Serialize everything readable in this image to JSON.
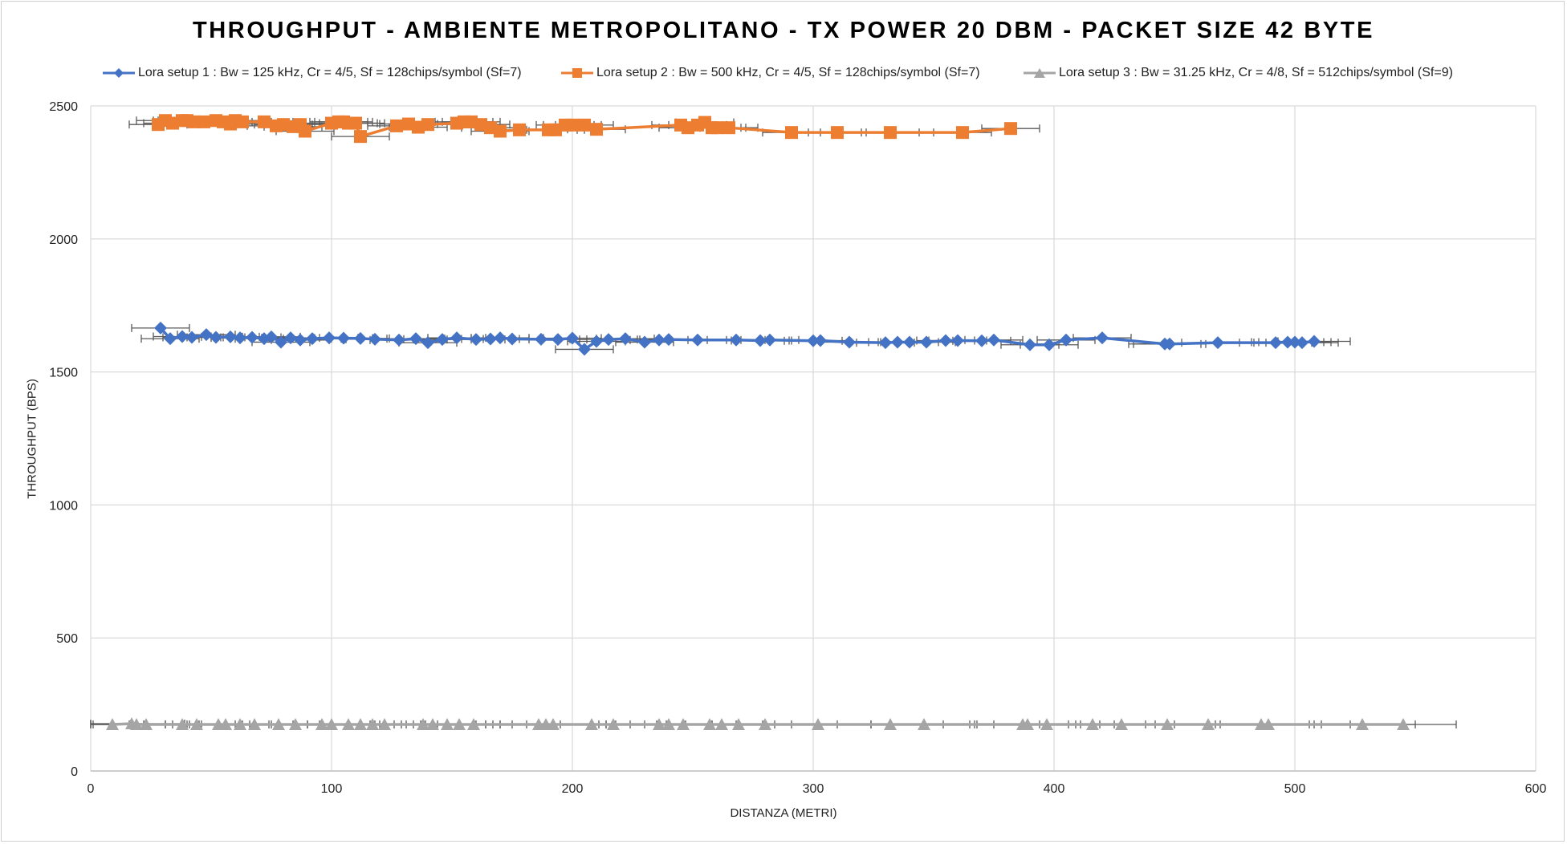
{
  "chart_data": {
    "type": "line",
    "title": "THROUGHPUT - AMBIENTE METROPOLITANO - TX POWER 20 DBM - PACKET SIZE 42 BYTE",
    "xlabel": "DISTANZA (METRI)",
    "ylabel": "THROUGHPUT (BPS)",
    "xlim": [
      0,
      600
    ],
    "ylim": [
      0,
      2500
    ],
    "x_ticks": [
      "0",
      "100",
      "200",
      "300",
      "400",
      "500",
      "600"
    ],
    "y_ticks": [
      "0",
      "500",
      "1000",
      "1500",
      "2000",
      "2500"
    ],
    "grid": true,
    "legend_position": "top",
    "error_bars": "horizontal",
    "series": [
      {
        "name": "Lora setup 1 : Bw = 125 kHz, Cr = 4/5, Sf = 128chips/symbol (Sf=7)",
        "color": "#4472C4",
        "marker": "diamond",
        "x": [
          29,
          33,
          38,
          42,
          48,
          52,
          58,
          62,
          67,
          72,
          75,
          79,
          83,
          87,
          92,
          99,
          105,
          112,
          118,
          128,
          135,
          140,
          146,
          152,
          160,
          166,
          170,
          175,
          187,
          194,
          200,
          205,
          210,
          215,
          222,
          230,
          236,
          240,
          252,
          268,
          278,
          282,
          300,
          303,
          315,
          330,
          335,
          340,
          347,
          355,
          360,
          370,
          375,
          390,
          398,
          405,
          420,
          446,
          448,
          468,
          492,
          497,
          500,
          503,
          508
        ],
        "y": [
          1665,
          1625,
          1633,
          1630,
          1640,
          1630,
          1632,
          1628,
          1630,
          1625,
          1632,
          1612,
          1628,
          1620,
          1625,
          1628,
          1627,
          1626,
          1623,
          1620,
          1625,
          1610,
          1622,
          1628,
          1622,
          1624,
          1628,
          1624,
          1623,
          1622,
          1627,
          1585,
          1615,
          1622,
          1625,
          1612,
          1620,
          1622,
          1620,
          1620,
          1618,
          1620,
          1617,
          1618,
          1612,
          1610,
          1612,
          1612,
          1612,
          1618,
          1618,
          1617,
          1620,
          1602,
          1602,
          1620,
          1628,
          1605,
          1605,
          1610,
          1610,
          1612,
          1612,
          1610,
          1615
        ],
        "x_error": [
          12,
          12,
          12,
          12,
          12,
          12,
          12,
          12,
          12,
          12,
          12,
          12,
          12,
          12,
          12,
          12,
          12,
          12,
          12,
          12,
          12,
          12,
          12,
          12,
          12,
          12,
          12,
          12,
          12,
          12,
          12,
          12,
          12,
          12,
          12,
          12,
          12,
          12,
          12,
          12,
          12,
          12,
          12,
          12,
          12,
          12,
          12,
          12,
          12,
          12,
          12,
          12,
          12,
          12,
          12,
          12,
          12,
          15,
          15,
          15,
          15,
          15,
          15,
          15,
          15
        ]
      },
      {
        "name": "Lora setup 2 : Bw = 500 kHz, Cr = 4/5, Sf = 128chips/symbol (Sf=7)",
        "color": "#ED7D31",
        "marker": "square",
        "x": [
          28,
          31,
          34,
          38,
          40,
          43,
          47,
          52,
          55,
          58,
          60,
          63,
          72,
          77,
          80,
          84,
          87,
          89,
          100,
          103,
          105,
          107,
          110,
          112,
          127,
          132,
          136,
          140,
          152,
          155,
          158,
          162,
          166,
          170,
          178,
          190,
          193,
          197,
          200,
          205,
          210,
          245,
          248,
          252,
          255,
          258,
          260,
          265,
          291,
          310,
          332,
          362,
          382
        ],
        "y": [
          2430,
          2445,
          2435,
          2445,
          2445,
          2440,
          2440,
          2445,
          2440,
          2432,
          2445,
          2440,
          2440,
          2425,
          2430,
          2422,
          2430,
          2405,
          2435,
          2440,
          2440,
          2435,
          2435,
          2385,
          2425,
          2432,
          2420,
          2430,
          2435,
          2440,
          2440,
          2430,
          2418,
          2405,
          2410,
          2410,
          2410,
          2428,
          2428,
          2428,
          2412,
          2428,
          2418,
          2428,
          2438,
          2418,
          2418,
          2418,
          2400,
          2400,
          2400,
          2400,
          2415
        ],
        "x_error": [
          12,
          12,
          12,
          12,
          12,
          12,
          12,
          12,
          12,
          12,
          12,
          12,
          12,
          12,
          12,
          12,
          12,
          12,
          12,
          12,
          12,
          12,
          12,
          12,
          12,
          12,
          12,
          12,
          12,
          12,
          12,
          12,
          12,
          12,
          12,
          12,
          12,
          12,
          12,
          12,
          12,
          12,
          12,
          12,
          12,
          12,
          12,
          12,
          12,
          12,
          12,
          12,
          12
        ]
      },
      {
        "name": "Lora setup 3 : Bw = 31.25 kHz, Cr = 4/8, Sf = 512chips/symbol (Sf=9)",
        "color": "#A5A5A5",
        "marker": "triangle",
        "x": [
          9,
          17,
          19,
          23,
          38,
          44,
          53,
          56,
          62,
          68,
          78,
          85,
          96,
          100,
          107,
          112,
          117,
          122,
          138,
          142,
          148,
          153,
          159,
          186,
          189,
          192,
          208,
          217,
          236,
          240,
          246,
          257,
          262,
          269,
          280,
          302,
          332,
          346,
          387,
          389,
          397,
          416,
          428,
          447,
          464,
          486,
          489,
          528,
          545
        ],
        "y": [
          175,
          178,
          175,
          175,
          175,
          175,
          175,
          175,
          175,
          175,
          175,
          175,
          175,
          175,
          175,
          175,
          175,
          175,
          175,
          175,
          175,
          175,
          175,
          175,
          175,
          175,
          175,
          175,
          175,
          175,
          175,
          175,
          175,
          175,
          175,
          175,
          175,
          175,
          175,
          175,
          175,
          175,
          175,
          175,
          175,
          175,
          175,
          175,
          175
        ],
        "x_error": [
          22,
          22,
          22,
          22,
          22,
          22,
          22,
          22,
          22,
          22,
          22,
          22,
          22,
          22,
          22,
          22,
          22,
          22,
          22,
          22,
          22,
          22,
          22,
          22,
          22,
          22,
          22,
          22,
          22,
          22,
          22,
          22,
          22,
          22,
          22,
          22,
          22,
          22,
          22,
          22,
          22,
          22,
          22,
          22,
          22,
          22,
          22,
          22,
          22
        ]
      }
    ]
  }
}
